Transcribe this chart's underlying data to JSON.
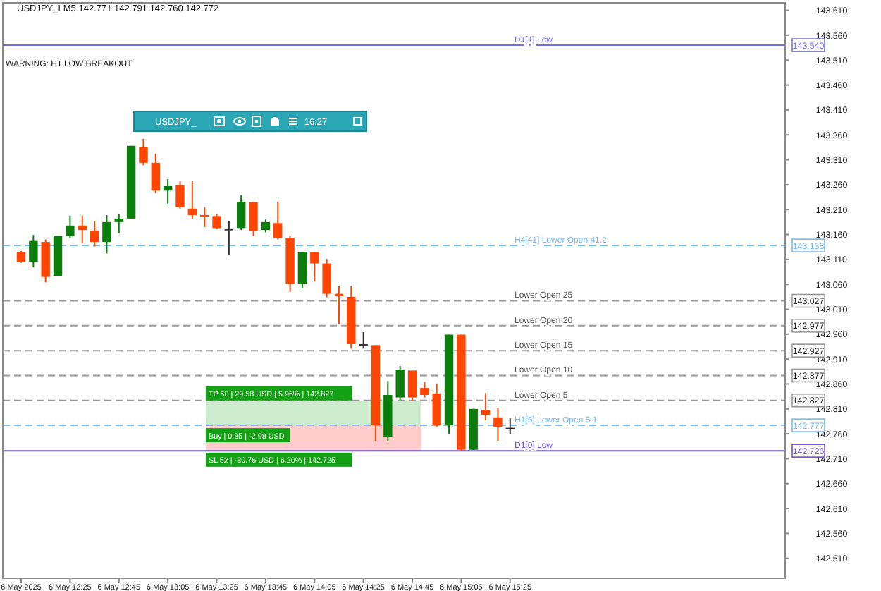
{
  "chart_data": {
    "type": "candlestick",
    "title": "USDJPY_LM5 142.771 142.791 142.760 142.772",
    "categories": [
      null,
      "6 May 2025",
      null,
      null,
      null,
      "6 May 12:25",
      null,
      null,
      null,
      "6 May 12:45",
      null,
      null,
      null,
      "6 May 13:05",
      null,
      null,
      null,
      "6 May 13:25",
      null,
      null,
      null,
      "6 May 13:45",
      null,
      null,
      null,
      "6 May 14:05",
      null,
      null,
      null,
      "6 May 14:25",
      null,
      null,
      null,
      "6 May 14:45",
      null,
      null,
      null,
      "6 May 15:05",
      null,
      null,
      null,
      "6 May 15:25",
      null,
      null,
      null,
      null,
      null,
      null,
      null,
      null,
      null,
      null,
      null,
      null,
      null,
      null,
      null,
      null,
      null,
      null,
      null,
      null,
      null,
      null
    ],
    "ohlc": [
      null,
      [
        143.124,
        143.127,
        143.103,
        143.105
      ],
      [
        143.105,
        143.159,
        143.094,
        143.147
      ],
      [
        143.145,
        143.15,
        143.064,
        143.075
      ],
      [
        143.077,
        143.157,
        143.077,
        143.157
      ],
      [
        143.157,
        143.198,
        143.153,
        143.178
      ],
      [
        143.178,
        143.198,
        143.143,
        143.169
      ],
      [
        143.168,
        143.187,
        143.136,
        143.145
      ],
      [
        143.145,
        143.199,
        143.122,
        143.185
      ],
      [
        143.185,
        143.201,
        143.162,
        143.192
      ],
      [
        143.192,
        143.338,
        143.192,
        143.338
      ],
      [
        143.336,
        143.352,
        143.299,
        143.304
      ],
      [
        143.304,
        143.322,
        143.243,
        143.248
      ],
      [
        143.248,
        143.271,
        143.222,
        143.257
      ],
      [
        143.259,
        143.267,
        143.212,
        143.215
      ],
      [
        143.212,
        143.267,
        143.192,
        143.199
      ],
      [
        143.199,
        143.215,
        143.175,
        143.197
      ],
      [
        143.197,
        143.201,
        143.171,
        143.173
      ],
      [
        143.171,
        143.187,
        143.119,
        143.171
      ],
      [
        143.173,
        143.239,
        143.169,
        143.226
      ],
      [
        143.225,
        143.225,
        143.157,
        143.167
      ],
      [
        143.169,
        143.19,
        143.164,
        143.185
      ],
      [
        143.183,
        143.226,
        143.15,
        143.153
      ],
      [
        143.153,
        143.157,
        143.045,
        143.061
      ],
      [
        143.061,
        143.125,
        143.052,
        143.125
      ],
      [
        143.125,
        143.125,
        143.066,
        143.102
      ],
      [
        143.102,
        143.111,
        143.034,
        143.041
      ],
      [
        143.041,
        143.057,
        142.98,
        143.036
      ],
      [
        143.035,
        143.057,
        142.931,
        142.94
      ],
      [
        142.94,
        142.964,
        142.931,
        142.94
      ],
      [
        142.938,
        142.938,
        142.745,
        142.777
      ],
      [
        142.754,
        142.866,
        142.745,
        142.838
      ],
      [
        142.833,
        142.896,
        142.828,
        142.889
      ],
      [
        142.887,
        142.887,
        142.828,
        142.833
      ],
      [
        142.852,
        142.864,
        142.833,
        142.838
      ],
      [
        142.841,
        142.861,
        142.774,
        142.777
      ],
      [
        142.777,
        142.959,
        142.759,
        142.959
      ],
      [
        142.959,
        142.959,
        142.726,
        142.728
      ],
      [
        142.728,
        142.81,
        142.728,
        142.81
      ],
      [
        142.808,
        142.842,
        142.787,
        142.798
      ],
      [
        142.793,
        142.812,
        142.746,
        142.774
      ],
      [
        142.771,
        142.791,
        142.76,
        142.772
      ],
      null,
      null,
      null,
      null,
      null,
      null,
      null,
      null,
      null,
      null,
      null,
      null,
      null,
      null,
      null,
      null,
      null,
      null,
      null,
      null,
      null,
      null
    ],
    "colors": [
      null,
      "#ff4500",
      "#0a7d0a",
      "#ff4500",
      "#0a7d0a",
      "#0a7d0a",
      "#ff4500",
      "#ff4500",
      "#0a7d0a",
      "#0a7d0a",
      "#0a7d0a",
      "#ff4500",
      "#ff4500",
      "#0a7d0a",
      "#ff4500",
      "#ff4500",
      "#ff4500",
      "#ff4500",
      "#333333",
      "#0a7d0a",
      "#ff4500",
      "#0a7d0a",
      "#ff4500",
      "#ff4500",
      "#0a7d0a",
      "#ff4500",
      "#ff4500",
      "#ff4500",
      "#ff4500",
      "#333333",
      "#ff4500",
      "#0a7d0a",
      "#0a7d0a",
      "#ff4500",
      "#ff4500",
      "#ff4500",
      "#0a7d0a",
      "#ff4500",
      "#0a7d0a",
      "#ff4500",
      "#ff4500",
      "#333333",
      null,
      null,
      null,
      null,
      null,
      null,
      null,
      null,
      null,
      null,
      null,
      null,
      null,
      null,
      null,
      null,
      null,
      null,
      null,
      null,
      null,
      null
    ],
    "ylim": [
      142.47,
      143.625
    ],
    "yticks": [
      {
        "value": 142.51,
        "label": "142.510"
      },
      {
        "value": 142.56,
        "label": "142.560"
      },
      {
        "value": 142.61,
        "label": "142.610"
      },
      {
        "value": 142.66,
        "label": "142.660"
      },
      {
        "value": 142.71,
        "label": "142.710"
      },
      {
        "value": 142.76,
        "label": "142.760"
      },
      {
        "value": 142.81,
        "label": "142.810"
      },
      {
        "value": 142.86,
        "label": "142.860"
      },
      {
        "value": 142.91,
        "label": "142.910"
      },
      {
        "value": 142.96,
        "label": "142.960"
      },
      {
        "value": 143.01,
        "label": "143.010"
      },
      {
        "value": 143.06,
        "label": "143.060"
      },
      {
        "value": 143.11,
        "label": "143.110"
      },
      {
        "value": 143.16,
        "label": "143.160"
      },
      {
        "value": 143.21,
        "label": "143.210"
      },
      {
        "value": 143.26,
        "label": "143.260"
      },
      {
        "value": 143.31,
        "label": "143.310"
      },
      {
        "value": 143.36,
        "label": "143.360"
      },
      {
        "value": 143.41,
        "label": "143.410"
      },
      {
        "value": 143.46,
        "label": "143.460"
      },
      {
        "value": 143.51,
        "label": "143.510"
      },
      {
        "value": 143.56,
        "label": "143.560"
      },
      {
        "value": 143.61,
        "label": "143.610"
      }
    ],
    "ref_lines": [
      {
        "axis": "y",
        "value": 143.54,
        "label": "D1[1] Low",
        "color": "#7070e0",
        "line_style": "solid"
      },
      {
        "axis": "y",
        "value": 143.138,
        "label": "H4[41] Lower Open 41.2",
        "color": "#7ab8f0",
        "line_style": "dashed"
      },
      {
        "axis": "y",
        "value": 143.027,
        "label": "Lower Open 25",
        "color": "#999999",
        "line_style": "dashed"
      },
      {
        "axis": "y",
        "value": 142.977,
        "label": "Lower Open 20",
        "color": "#999999",
        "line_style": "dashed"
      },
      {
        "axis": "y",
        "value": 142.927,
        "label": "Lower Open 15",
        "color": "#999999",
        "line_style": "dashed"
      },
      {
        "axis": "y",
        "value": 142.877,
        "label": "Lower Open 10",
        "color": "#999999",
        "line_style": "dashed"
      },
      {
        "axis": "y",
        "value": 142.827,
        "label": "Lower Open 5",
        "color": "#999999",
        "line_style": "dashed"
      },
      {
        "axis": "y",
        "value": 142.777,
        "label": "H1[5] Lower Open 5.1",
        "color": "#7ab8f0",
        "line_style": "dashed"
      },
      {
        "axis": "y",
        "value": 142.726,
        "label": "D1[0] Low",
        "color": "#7050d0",
        "line_style": "solid"
      }
    ],
    "bands": [
      {
        "axis": "y",
        "from": 142.777,
        "to": 142.827,
        "color": "#cdeccd"
      },
      {
        "axis": "y",
        "from": 142.725,
        "to": 142.777,
        "color": "#ffcccc"
      }
    ],
    "annotations": [
      "WARNING: H1 LOW BREAKOUT",
      "USDJPY_",
      "16:27",
      "TP 50 | 29.58 USD | 5.96% | 142.827",
      "Buy | 0.85 | -2.98 USD",
      "SL 52 | -30.76 USD | 6.20% | 142.725",
      "143.540",
      "143.138",
      "143.027",
      "142.977",
      "142.927",
      "142.877",
      "142.827",
      "142.777",
      "142.726"
    ]
  }
}
